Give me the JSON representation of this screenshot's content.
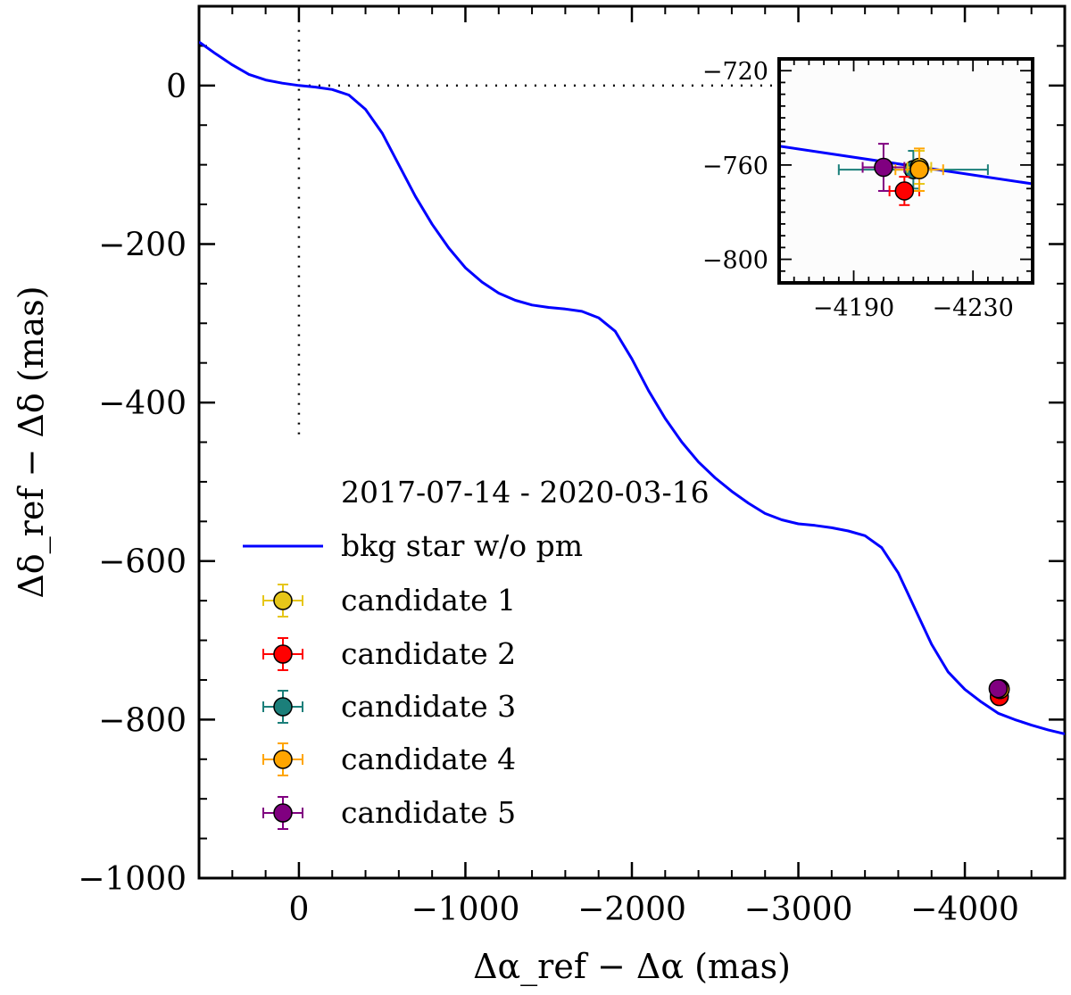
{
  "chart_data": [
    {
      "type": "line",
      "role": "main",
      "xlabel": "Δα_ref − Δα (mas)",
      "ylabel": "Δδ_ref − Δδ (mas)",
      "xlim": [
        600,
        -4600
      ],
      "ylim": [
        -1000,
        100
      ],
      "x_axis_inverted": true,
      "xticks": [
        0,
        -1000,
        -2000,
        -3000,
        -4000
      ],
      "xtick_labels": [
        "0",
        "−1000",
        "−2000",
        "−3000",
        "−4000"
      ],
      "yticks": [
        0,
        -200,
        -400,
        -600,
        -800,
        -1000
      ],
      "ytick_labels": [
        "0",
        "−200",
        "−400",
        "−600",
        "−800",
        "−1000"
      ],
      "grid": false,
      "legend": {
        "placement": "lower-left",
        "title": "2017-07-14 - 2020-03-16",
        "entries": [
          "bkg star w/o pm",
          "candidate 1",
          "candidate 2",
          "candidate 3",
          "candidate 4",
          "candidate 5"
        ]
      },
      "reference_lines": [
        {
          "orientation": "horizontal",
          "y": 0,
          "style": "dotted",
          "x_from": 0,
          "x_to": -3000
        },
        {
          "orientation": "vertical",
          "x": 0,
          "style": "dotted",
          "y_from": 70,
          "y_to": -450
        }
      ],
      "series": [
        {
          "name": "bkg star w/o pm",
          "kind": "line",
          "color": "#0000ff",
          "x": [
            600,
            500,
            400,
            300,
            200,
            100,
            0,
            -100,
            -200,
            -300,
            -400,
            -500,
            -600,
            -700,
            -800,
            -900,
            -1000,
            -1100,
            -1200,
            -1300,
            -1400,
            -1500,
            -1600,
            -1700,
            -1800,
            -1900,
            -2000,
            -2100,
            -2200,
            -2300,
            -2400,
            -2500,
            -2600,
            -2700,
            -2800,
            -2900,
            -3000,
            -3100,
            -3200,
            -3300,
            -3400,
            -3500,
            -3600,
            -3700,
            -3800,
            -3900,
            -4000,
            -4100,
            -4200,
            -4300,
            -4400,
            -4500,
            -4600
          ],
          "y": [
            55,
            40,
            26,
            14,
            7,
            3,
            0,
            -2,
            -5,
            -12,
            -30,
            -60,
            -100,
            -140,
            -175,
            -205,
            -230,
            -248,
            -262,
            -271,
            -277,
            -280,
            -282,
            -285,
            -293,
            -310,
            -345,
            -385,
            -420,
            -450,
            -475,
            -495,
            -512,
            -527,
            -540,
            -548,
            -553,
            -555,
            -558,
            -562,
            -568,
            -583,
            -615,
            -660,
            -705,
            -740,
            -762,
            -778,
            -792,
            -800,
            -807,
            -813,
            -818
          ]
        },
        {
          "name": "candidate 1",
          "kind": "point",
          "color": "#e6c619",
          "x": -4212,
          "y": -761
        },
        {
          "name": "candidate 2",
          "kind": "point",
          "color": "#ff0000",
          "x": -4207,
          "y": -771
        },
        {
          "name": "candidate 3",
          "kind": "point",
          "color": "#1b7f7a",
          "x": -4210,
          "y": -762
        },
        {
          "name": "candidate 4",
          "kind": "point",
          "color": "#ffa500",
          "x": -4212,
          "y": -762
        },
        {
          "name": "candidate 5",
          "kind": "point",
          "color": "#800080",
          "x": -4200,
          "y": -761
        }
      ]
    },
    {
      "type": "scatter",
      "role": "inset",
      "placement": "top-right",
      "xlim": [
        -4165,
        -4250
      ],
      "ylim": [
        -810,
        -715
      ],
      "x_axis_inverted": true,
      "xticks": [
        -4190,
        -4230
      ],
      "xtick_labels": [
        "−4190",
        "−4230"
      ],
      "yticks": [
        -720,
        -760,
        -800
      ],
      "ytick_labels": [
        "−720",
        "−760",
        "−800"
      ],
      "series": [
        {
          "name": "bkg star w/o pm",
          "kind": "line",
          "color": "#0000ff",
          "x": [
            -4165,
            -4250
          ],
          "y": [
            -752,
            -768
          ]
        },
        {
          "name": "candidate 3",
          "kind": "point",
          "color": "#1b7f7a",
          "x": -4210,
          "y": -762,
          "xerr": 25,
          "yerr": 8
        },
        {
          "name": "candidate 1",
          "kind": "point",
          "color": "#e6c619",
          "x": -4212,
          "y": -761,
          "xerr": 4,
          "yerr": 7
        },
        {
          "name": "candidate 2",
          "kind": "point",
          "color": "#ff0000",
          "x": -4207,
          "y": -771,
          "xerr": 5,
          "yerr": 6
        },
        {
          "name": "candidate 4",
          "kind": "point",
          "color": "#ffa500",
          "x": -4212,
          "y": -762,
          "xerr": 8,
          "yerr": 9
        },
        {
          "name": "candidate 5",
          "kind": "point",
          "color": "#800080",
          "x": -4200,
          "y": -761,
          "xerr": 7,
          "yerr": 10
        }
      ]
    }
  ]
}
